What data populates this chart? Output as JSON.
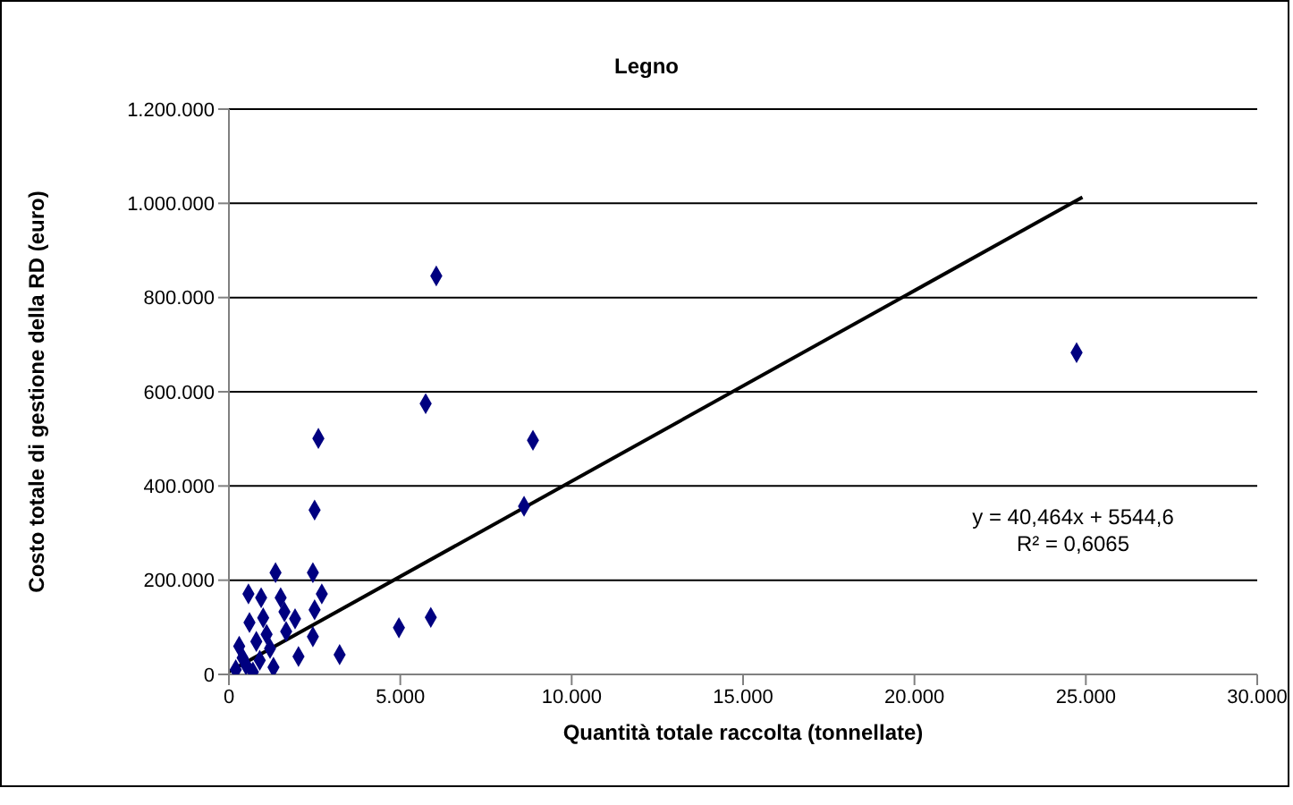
{
  "chart_data": {
    "type": "scatter",
    "title": "Legno",
    "xlabel": "Quantità totale raccolta (tonnellate)",
    "ylabel": "Costo totale di gestione della RD (euro)",
    "xlim": [
      0,
      30000
    ],
    "xticks": [
      0,
      {
        "value": 5000,
        "label": "5.000"
      },
      {
        "value": 10000,
        "label": "10.000"
      },
      {
        "value": 15000,
        "label": "15.000"
      },
      {
        "value": 20000,
        "label": "20.000"
      },
      {
        "value": 25000,
        "label": "25.000"
      },
      {
        "value": 30000,
        "label": "30.000"
      }
    ],
    "ylim": [
      0,
      1200000
    ],
    "yticks": [
      0,
      {
        "value": 200000,
        "label": "200.000"
      },
      {
        "value": 400000,
        "label": "400.000"
      },
      {
        "value": 600000,
        "label": "600.000"
      },
      {
        "value": 800000,
        "label": "800.000"
      },
      {
        "value": 1000000,
        "label": "1.000.000"
      },
      {
        "value": 1200000,
        "label": "1.200.000"
      }
    ],
    "grid": "y",
    "marker": "diamond",
    "annotations": [
      "y = 40,464x + 5544,6",
      "R² = 0,6065"
    ],
    "series": [
      {
        "color": "#000080",
        "x": [
          6050,
          5740,
          8870,
          8610,
          2610,
          2500,
          24730,
          5890,
          4960,
          1360,
          2450,
          2710,
          570,
          940,
          1510,
          1620,
          2500,
          3230,
          1930,
          1670,
          2450,
          2030,
          600,
          1000,
          300,
          800,
          1200,
          500,
          900,
          1300,
          400,
          700,
          1100,
          200
        ],
        "values": [
          846000,
          575000,
          497000,
          357000,
          501000,
          349000,
          683000,
          121000,
          99000,
          216000,
          216000,
          171000,
          171000,
          163000,
          163000,
          133000,
          137000,
          42000,
          118000,
          91000,
          80000,
          38000,
          110000,
          120000,
          60000,
          70000,
          55000,
          20000,
          30000,
          15000,
          35000,
          5000,
          85000,
          10000
        ]
      },
      {
        "type": "line",
        "color": "#000000",
        "line_style": "solid",
        "marker": "none",
        "x": [
          0,
          24900
        ],
        "values": [
          5500,
          1013000
        ]
      }
    ]
  }
}
